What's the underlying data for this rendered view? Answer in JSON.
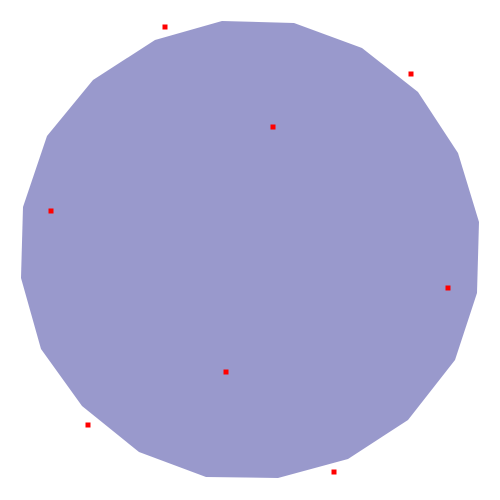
{
  "scene": {
    "background_color": "#ffffff",
    "polygon": {
      "label": "",
      "fill": "#9999cc",
      "stroke": "none"
    },
    "points": {
      "color": "#ff0000",
      "count": 8,
      "labels": []
    }
  }
}
